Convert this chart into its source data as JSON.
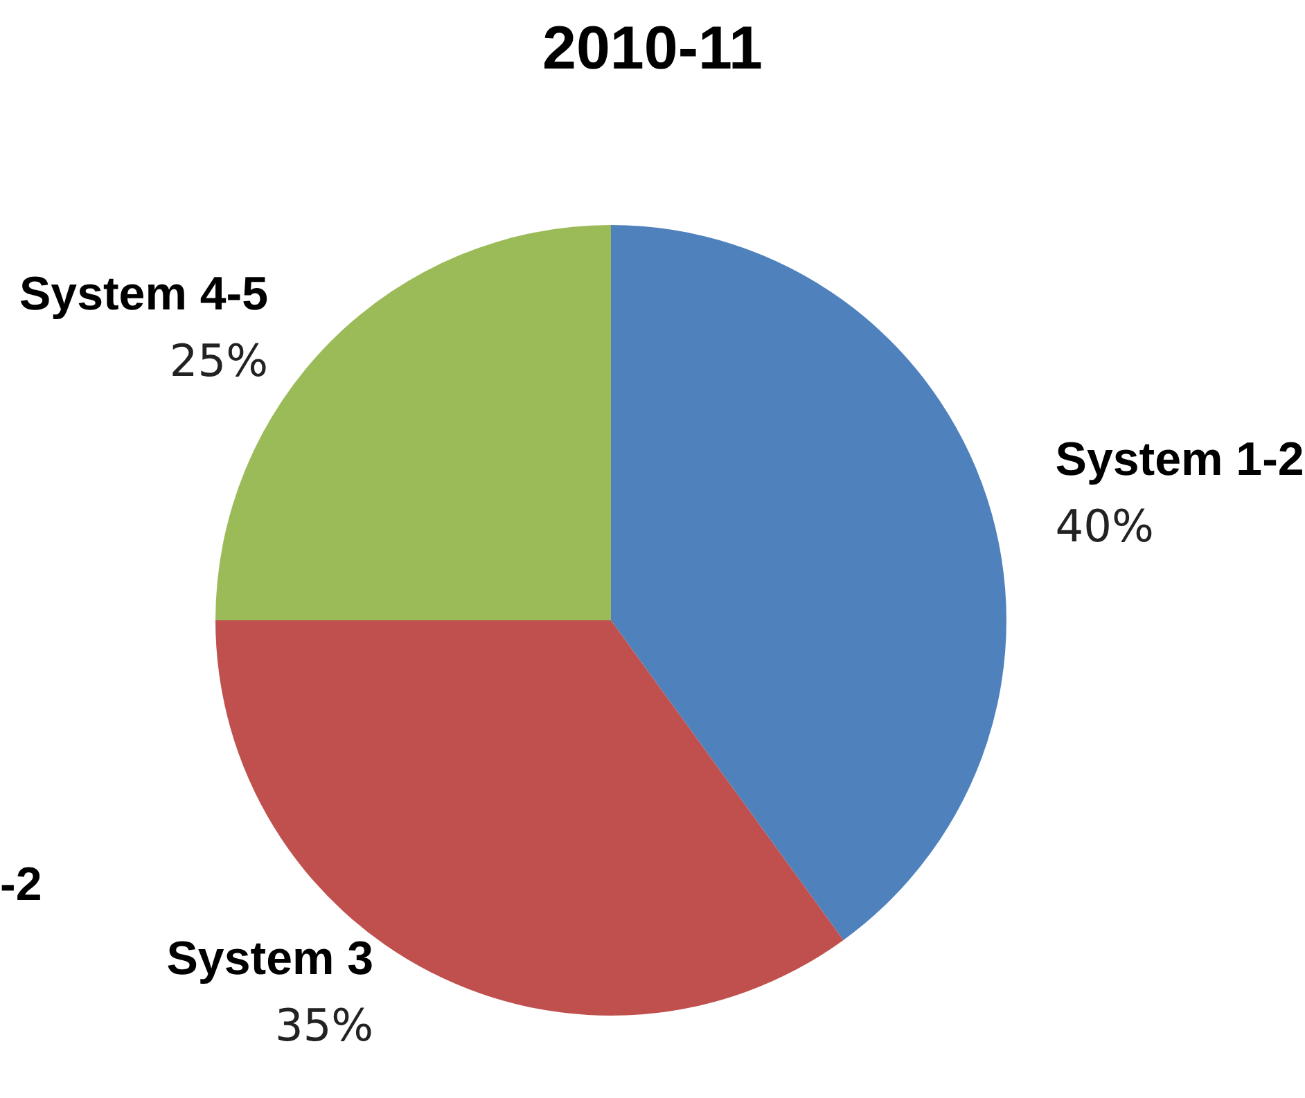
{
  "chart_data": {
    "type": "pie",
    "title": "2010-11",
    "categories": [
      "System 1-2",
      "System 3",
      "System 4-5"
    ],
    "values": [
      40,
      35,
      25
    ],
    "colors": [
      "#4f81bd",
      "#c0504d",
      "#9bbb59"
    ],
    "value_labels": [
      "40%",
      "35%",
      "25%"
    ],
    "annotations": [
      "-2"
    ],
    "legend": false
  }
}
